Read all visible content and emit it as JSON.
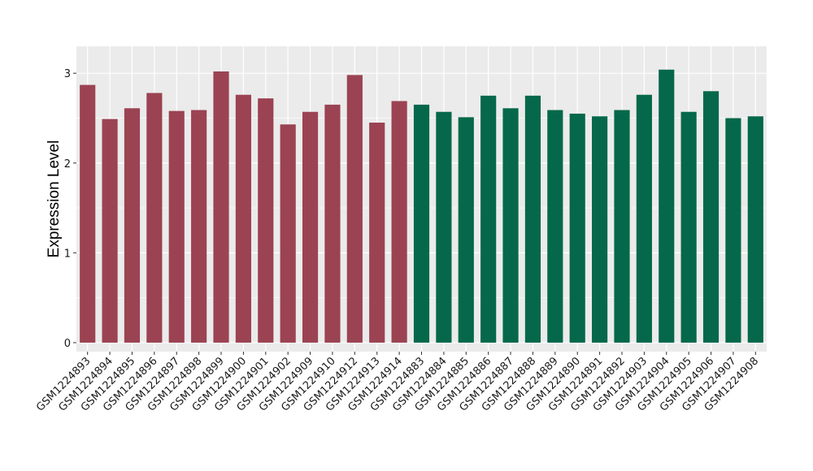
{
  "chart_data": {
    "type": "bar",
    "ylabel": "Expression Level",
    "ylim": [
      -0.1,
      3.3
    ],
    "yticks": [
      0,
      1,
      2,
      3
    ],
    "grid": true,
    "categories": [
      "GSM1224893",
      "GSM1224894",
      "GSM1224895",
      "GSM1224896",
      "GSM1224897",
      "GSM1224898",
      "GSM1224899",
      "GSM1224900",
      "GSM1224901",
      "GSM1224902",
      "GSM1224909",
      "GSM1224910",
      "GSM1224912",
      "GSM1224913",
      "GSM1224914",
      "GSM1224883",
      "GSM1224884",
      "GSM1224885",
      "GSM1224886",
      "GSM1224887",
      "GSM1224888",
      "GSM1224889",
      "GSM1224890",
      "GSM1224891",
      "GSM1224892",
      "GSM1224903",
      "GSM1224904",
      "GSM1224905",
      "GSM1224906",
      "GSM1224907",
      "GSM1224908"
    ],
    "values": [
      2.87,
      2.49,
      2.61,
      2.78,
      2.58,
      2.59,
      3.02,
      2.76,
      2.72,
      2.43,
      2.57,
      2.65,
      2.98,
      2.45,
      2.69,
      2.65,
      2.57,
      2.51,
      2.75,
      2.61,
      2.75,
      2.59,
      2.55,
      2.52,
      2.59,
      2.76,
      3.04,
      2.57,
      2.8,
      2.5,
      2.52
    ],
    "groups": [
      0,
      0,
      0,
      0,
      0,
      0,
      0,
      0,
      0,
      0,
      0,
      0,
      0,
      0,
      0,
      1,
      1,
      1,
      1,
      1,
      1,
      1,
      1,
      1,
      1,
      1,
      1,
      1,
      1,
      1,
      1
    ],
    "group_colors": [
      "#9b4352",
      "#05684a"
    ],
    "background": "#ebebeb",
    "grid_color": "#ffffff"
  }
}
